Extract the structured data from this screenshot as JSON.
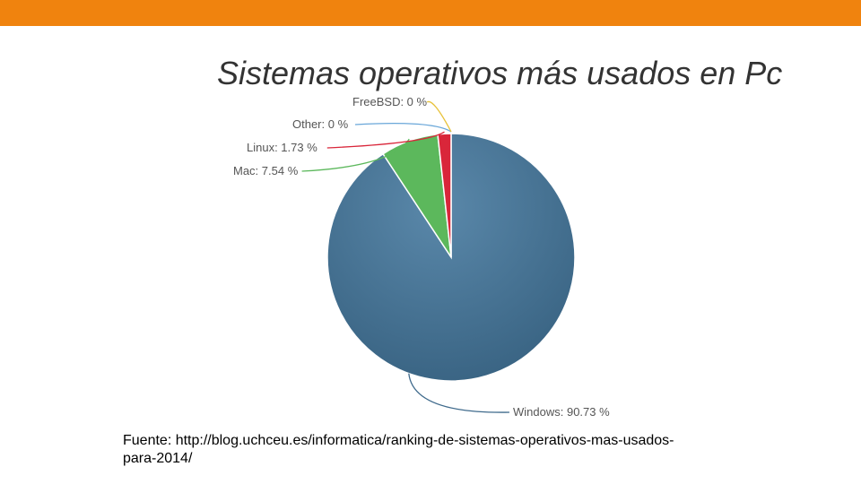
{
  "slide": {
    "title": "Sistemas operativos más usados en Pc",
    "source_line1": "Fuente: http://blog.uchceu.es/informatica/ranking-de-sistemas-operativos-mas-usados-",
    "source_line2": "para-2014/"
  },
  "colors": {
    "top_bar": "#f0830e"
  },
  "chart_data": {
    "type": "pie",
    "title": "Sistemas operativos más usados en Pc",
    "slices": [
      {
        "label": "Windows: 90.73 %",
        "value": 90.73,
        "color": "#3f6a8c"
      },
      {
        "label": "Mac: 7.54 %",
        "value": 7.54,
        "color": "#5cb85c"
      },
      {
        "label": "Linux: 1.73 %",
        "value": 1.73,
        "color": "#d9263a"
      },
      {
        "label": "Other: 0 %",
        "value": 0,
        "color": "#6aa7d9"
      },
      {
        "label": "FreeBSD: 0 %",
        "value": 0,
        "color": "#e8c23a"
      }
    ]
  }
}
